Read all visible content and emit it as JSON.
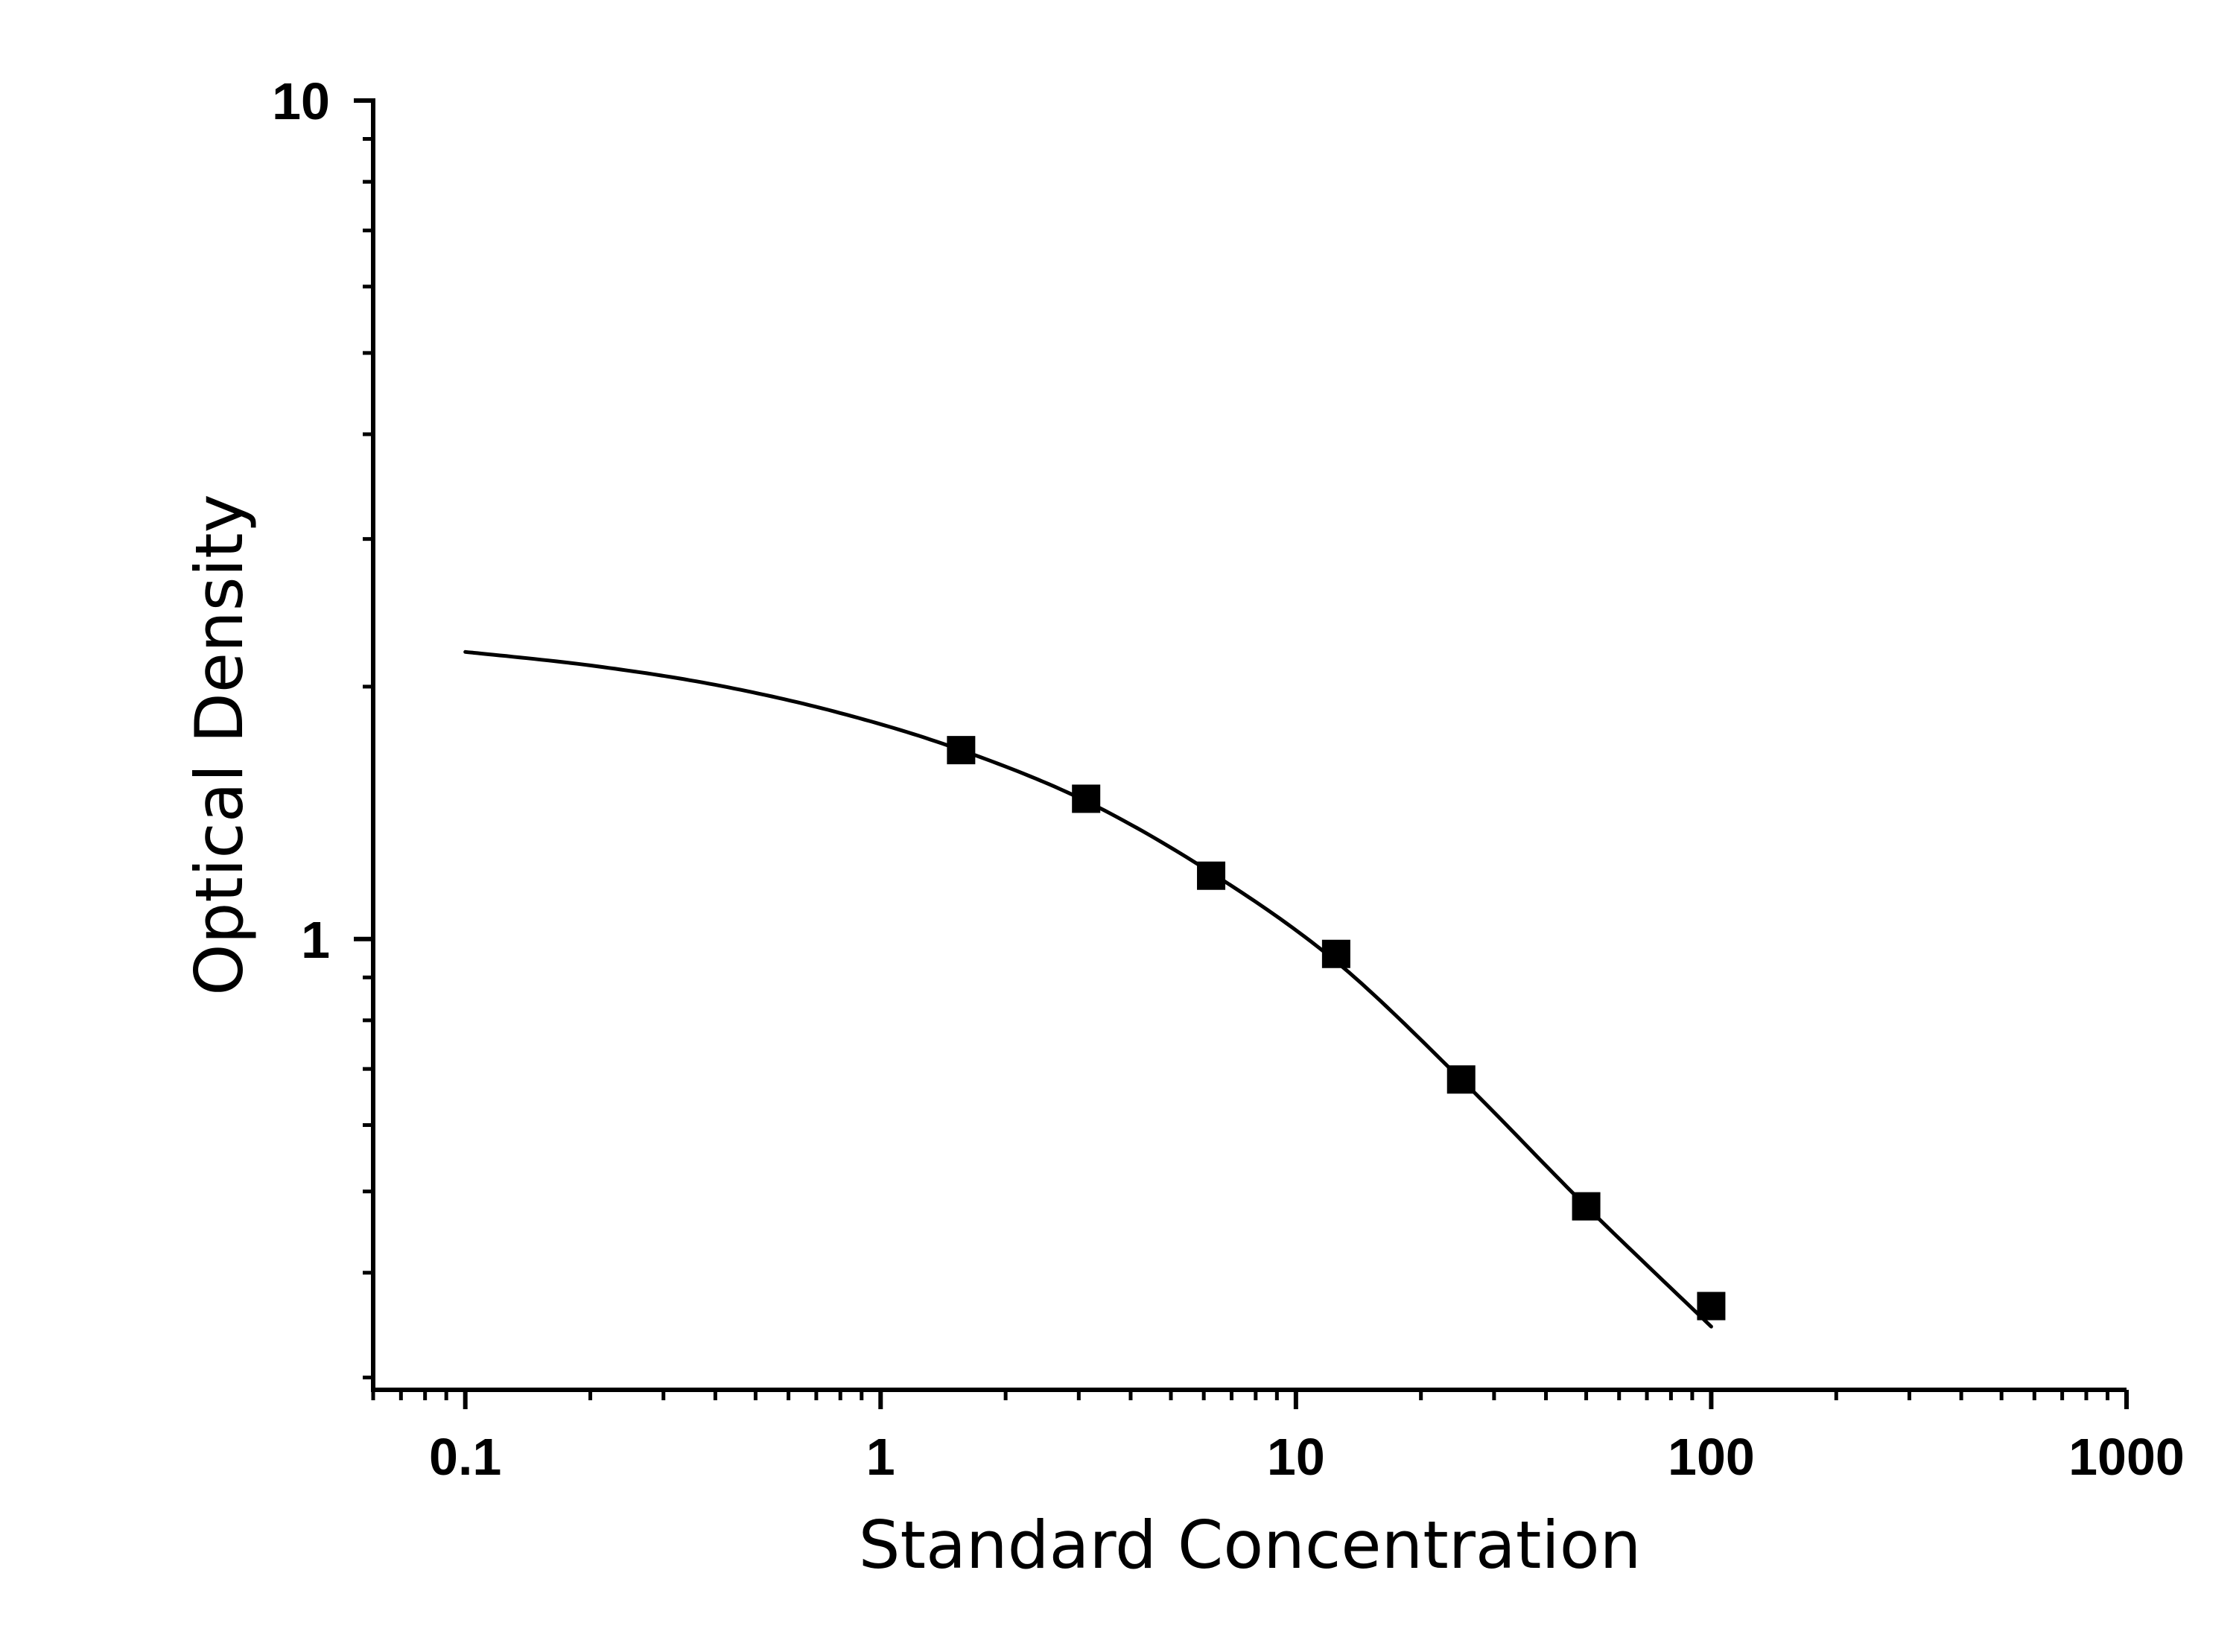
{
  "chart_data": {
    "type": "scatter",
    "title": "",
    "xlabel": "Standard Concentration",
    "ylabel": "Optical Density",
    "x_scale": "log",
    "y_scale": "log",
    "xlim": [
      0.06,
      1000
    ],
    "ylim": [
      0.29,
      10
    ],
    "x_ticks": [
      {
        "value": 0.1,
        "label": "0.1"
      },
      {
        "value": 1,
        "label": "1"
      },
      {
        "value": 10,
        "label": "10"
      },
      {
        "value": 100,
        "label": "100"
      },
      {
        "value": 1000,
        "label": "1000"
      }
    ],
    "y_ticks": [
      {
        "value": 1,
        "label": "1"
      },
      {
        "value": 10,
        "label": "10"
      }
    ],
    "grid": false,
    "legend": "none",
    "series": [
      {
        "kind": "points",
        "marker": "square",
        "color": "#000000",
        "x": [
          1.5625,
          3.125,
          6.25,
          12.5,
          25,
          50,
          100
        ],
        "y": [
          1.68,
          1.47,
          1.19,
          0.96,
          0.68,
          0.48,
          0.365
        ]
      },
      {
        "kind": "fit-curve",
        "color": "#000000",
        "x": [
          0.1,
          0.2,
          0.4,
          0.8,
          1.5625,
          3.125,
          6.25,
          12.5,
          25,
          50,
          100
        ],
        "y": [
          2.2,
          2.12,
          2.01,
          1.86,
          1.68,
          1.46,
          1.2,
          0.94,
          0.68,
          0.48,
          0.345
        ]
      }
    ]
  }
}
